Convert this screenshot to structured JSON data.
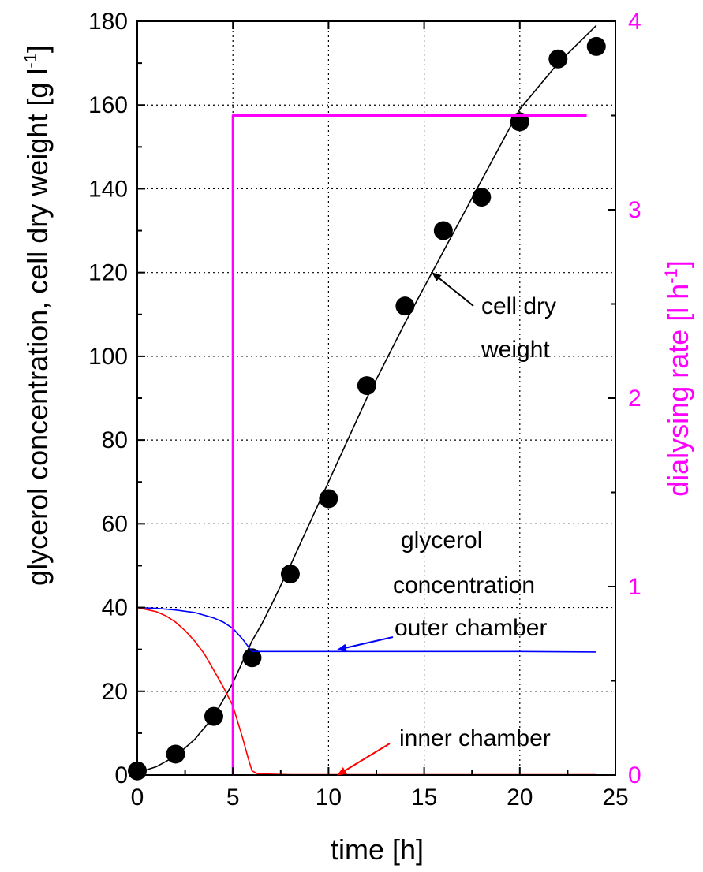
{
  "chart_data": {
    "type": "line",
    "xlabel": "time [h]",
    "ylabel": "glycerol concentration, cell dry weight  [g l",
    "ylabel_sup": "-1",
    "ylabel_close": "]",
    "y2label": "dialysing rate [l h",
    "y2label_sup": "-1",
    "y2label_close": "]",
    "xlim": [
      0,
      25
    ],
    "ylim": [
      0,
      180
    ],
    "y2lim": [
      0,
      4
    ],
    "x_ticks": [
      "0",
      "5",
      "10",
      "15",
      "20",
      "25"
    ],
    "y_ticks": [
      "0",
      "20",
      "40",
      "60",
      "80",
      "100",
      "120",
      "140",
      "160",
      "180"
    ],
    "y2_ticks": [
      "0",
      "1",
      "2",
      "3",
      "4"
    ],
    "grid": true,
    "colors": {
      "cell": "#000000",
      "outer": "#0000ff",
      "inner": "#ff0000",
      "dialysing": "#ff00ff",
      "axis2": "#ff00ff"
    },
    "series": [
      {
        "name": "cell dry weight",
        "kind": "scatter",
        "x": [
          0,
          2,
          4,
          6,
          8,
          10,
          12,
          14,
          16,
          18,
          20,
          22,
          24
        ],
        "y": [
          1,
          5,
          14,
          28,
          48,
          66,
          93,
          112,
          130,
          138,
          156,
          171,
          174
        ]
      },
      {
        "name": "cell dry weight",
        "kind": "line",
        "x": [
          0,
          1,
          2,
          3,
          4,
          4.5,
          5,
          5.5,
          6,
          6.5,
          7,
          8,
          10,
          12,
          14,
          16,
          18,
          20,
          22,
          24
        ],
        "y": [
          0.5,
          2,
          4.5,
          8.5,
          14,
          18,
          22,
          27,
          32,
          36,
          40.5,
          50,
          70,
          90,
          108,
          125,
          142,
          159,
          170,
          179
        ]
      },
      {
        "name": "outer chamber",
        "kind": "line",
        "x": [
          0,
          1,
          2,
          3,
          4,
          4.5,
          5,
          5.5,
          6,
          8,
          12,
          16,
          20,
          24
        ],
        "y": [
          40,
          39.8,
          39.4,
          38.8,
          37.5,
          36.5,
          35,
          32.5,
          29.5,
          29.5,
          29.5,
          29.5,
          29.5,
          29.4
        ]
      },
      {
        "name": "inner chamber",
        "kind": "line",
        "x": [
          0,
          0.5,
          1,
          1.5,
          2,
          2.5,
          3,
          3.5,
          4,
          4.5,
          5,
          5.5,
          5.8,
          6,
          6.3,
          8,
          12,
          16,
          20,
          24
        ],
        "y": [
          40,
          39.5,
          39,
          38,
          36.5,
          34.5,
          32,
          29,
          25,
          21,
          16.5,
          9,
          4,
          1,
          0.3,
          0.1,
          0.1,
          0.1,
          0.1,
          0.1
        ]
      },
      {
        "name": "dialysing rate",
        "kind": "step",
        "axis": "y2",
        "x": [
          5,
          5,
          23.5
        ],
        "y": [
          0,
          3.5,
          3.5
        ]
      }
    ],
    "annotations": {
      "cell_line1": "cell dry",
      "cell_line2": "weight",
      "glycerol_line1": "glycerol",
      "glycerol_line2": "concentration",
      "outer": "outer chamber",
      "inner": "inner chamber"
    }
  }
}
